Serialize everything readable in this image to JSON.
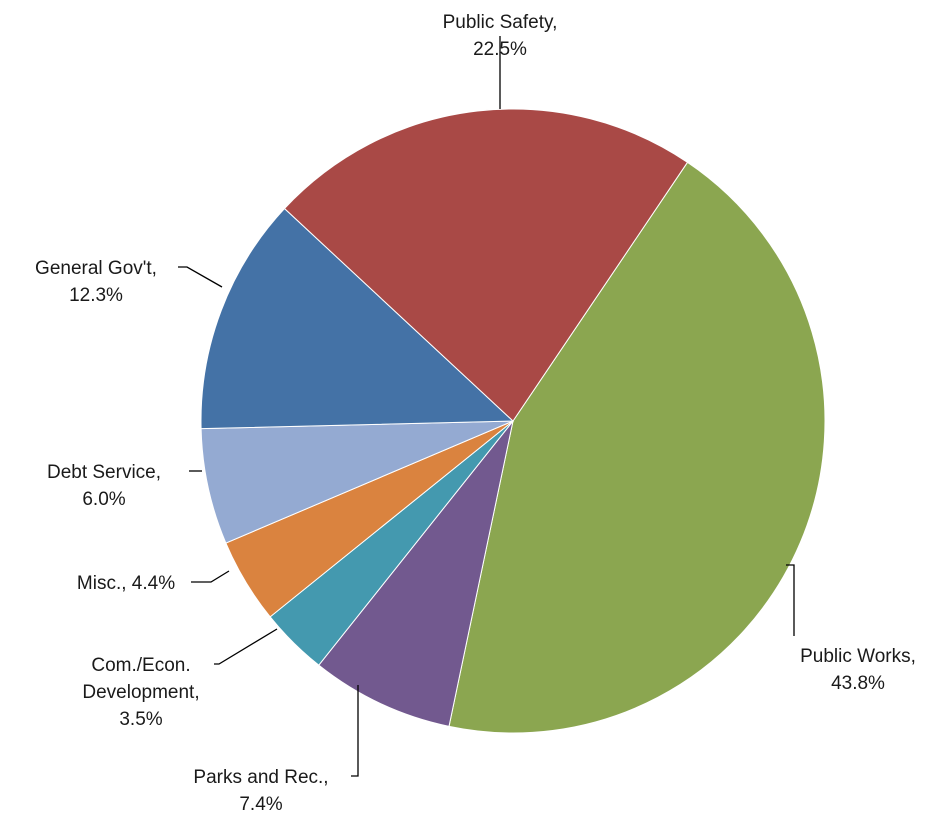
{
  "chart_data": {
    "type": "pie",
    "title": "",
    "start_angle_deg": 34,
    "direction": "clockwise",
    "legend": "none",
    "slices": [
      {
        "name": "Public Works",
        "value": 43.8,
        "label_lines": [
          "Public Works,",
          "43.8%"
        ],
        "color": "#8BA650"
      },
      {
        "name": "Parks and Rec.",
        "value": 7.4,
        "label_lines": [
          "Parks and Rec.,",
          "7.4%"
        ],
        "color": "#72598F"
      },
      {
        "name": "Com./Econ. Development",
        "value": 3.5,
        "label_lines": [
          "Com./Econ.",
          "Development,",
          "3.5%"
        ],
        "color": "#4499AF"
      },
      {
        "name": "Misc.",
        "value": 4.4,
        "label_lines": [
          "Misc., 4.4%"
        ],
        "color": "#DA833F"
      },
      {
        "name": "Debt Service",
        "value": 6.0,
        "label_lines": [
          "Debt Service,",
          "6.0%"
        ],
        "color": "#94AAD2"
      },
      {
        "name": "General Gov't",
        "value": 12.3,
        "label_lines": [
          "General Gov't,",
          "12.3%"
        ],
        "color": "#4472A6"
      },
      {
        "name": "Public Safety",
        "value": 22.5,
        "label_lines": [
          "Public Safety,",
          "22.5%"
        ],
        "color": "#A94946"
      }
    ]
  }
}
